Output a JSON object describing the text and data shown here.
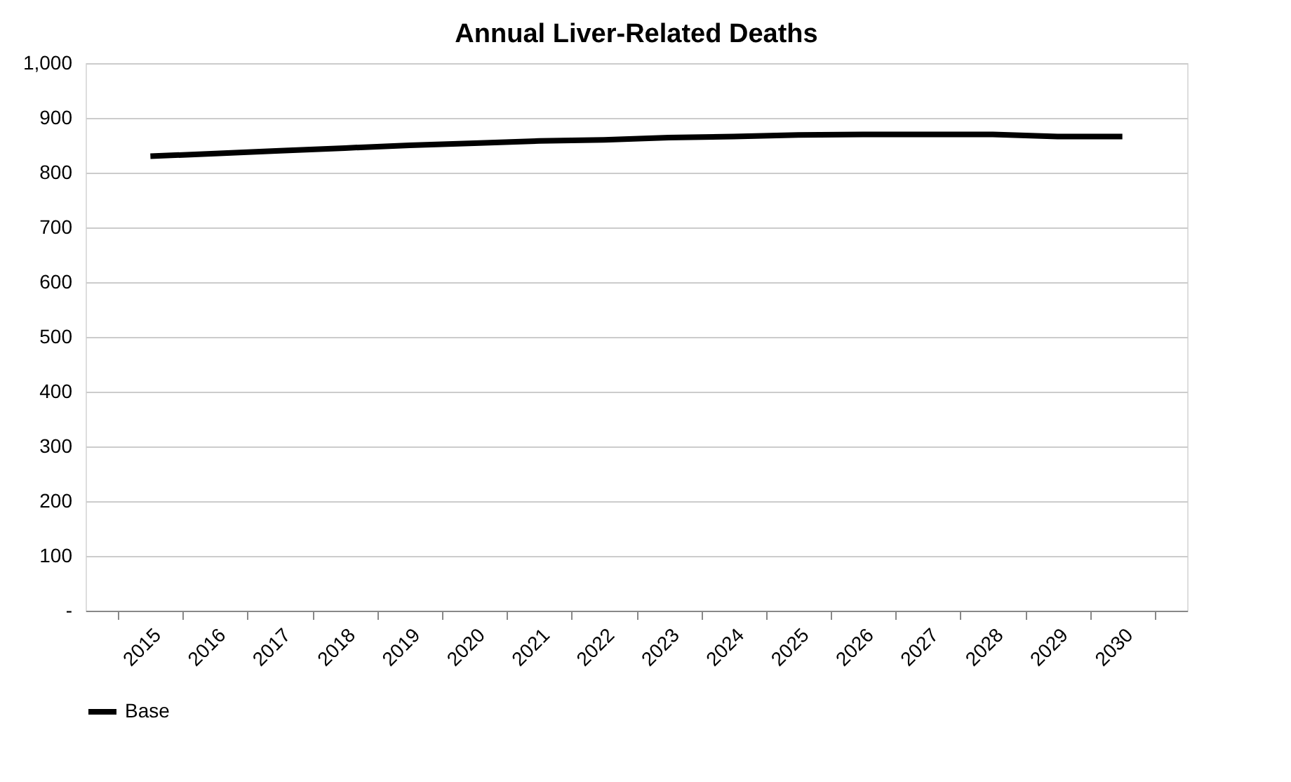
{
  "chart_data": {
    "type": "line",
    "title": "Annual Liver-Related Deaths",
    "categories": [
      "2015",
      "2016",
      "2017",
      "2018",
      "2019",
      "2020",
      "2021",
      "2022",
      "2023",
      "2024",
      "2025",
      "2026",
      "2027",
      "2028",
      "2029",
      "2030"
    ],
    "series": [
      {
        "name": "Base",
        "color": "#000000",
        "values": [
          830,
          835,
          840,
          845,
          850,
          854,
          858,
          860,
          864,
          866,
          869,
          870,
          870,
          870,
          866,
          866
        ]
      }
    ],
    "ylim": [
      0,
      1000
    ],
    "yticks": [
      {
        "value": 0,
        "label": "-"
      },
      100,
      200,
      300,
      400,
      500,
      600,
      700,
      800,
      900,
      {
        "value": 1000,
        "label": "1,000"
      }
    ],
    "grid": "y",
    "legend": "bottom",
    "marker": "none",
    "line_style": "solid"
  }
}
